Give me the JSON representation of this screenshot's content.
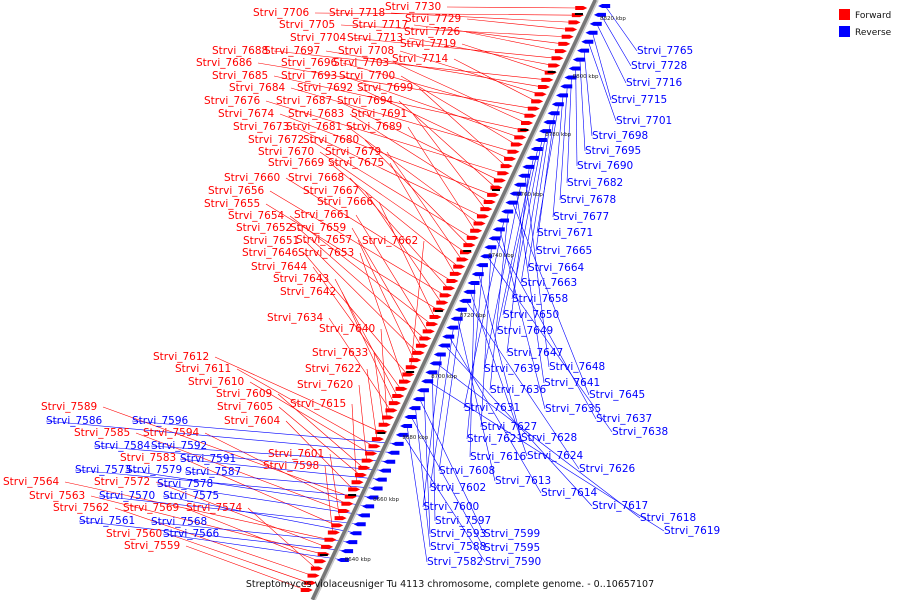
{
  "caption": "Streptomyces violaceusniger Tu 4113 chromosome, complete genome. - 0..10657107",
  "legend": [
    {
      "label": "Forward",
      "color": "#ff0000"
    },
    {
      "label": "Reverse",
      "color": "#0000ff"
    }
  ],
  "colors": {
    "forward": "#ff0000",
    "reverse": "#0000ff",
    "backbone": "#777777"
  },
  "ticks": [
    "8640 kbp",
    "8660 kbp",
    "8680 kbp",
    "8700 kbp",
    "8720 kbp",
    "8740 kbp",
    "8760 kbp",
    "8780 kbp",
    "8800 kbp",
    "8820 kbp"
  ],
  "forward_genes": [
    "Strvi_7730",
    "Strvi_7706",
    "Strvi_7718",
    "Strvi_7729",
    "Strvi_7705",
    "Strvi_7717",
    "Strvi_7726",
    "Strvi_7704",
    "Strvi_7713",
    "Strvi_7719",
    "Strvi_7688",
    "Strvi_7697",
    "Strvi_7708",
    "Strvi_7714",
    "Strvi_7686",
    "Strvi_7696",
    "Strvi_7703",
    "Strvi_7685",
    "Strvi_7693",
    "Strvi_7700",
    "Strvi_7684",
    "Strvi_7692",
    "Strvi_7699",
    "Strvi_7676",
    "Strvi_7687",
    "Strvi_7694",
    "Strvi_7674",
    "Strvi_7683",
    "Strvi_7691",
    "Strvi_7673",
    "Strvi_7681",
    "Strvi_7689",
    "Strvi_7672",
    "Strvi_7680",
    "Strvi_7670",
    "Strvi_7679",
    "Strvi_7669",
    "Strvi_7675",
    "Strvi_7660",
    "Strvi_7668",
    "Strvi_7656",
    "Strvi_7667",
    "Strvi_7655",
    "Strvi_7666",
    "Strvi_7654",
    "Strvi_7661",
    "Strvi_7652",
    "Strvi_7659",
    "Strvi_7651",
    "Strvi_7657",
    "Strvi_7662",
    "Strvi_7646",
    "Strvi_7653",
    "Strvi_7644",
    "Strvi_7643",
    "Strvi_7642",
    "Strvi_7634",
    "Strvi_7640",
    "Strvi_7633",
    "Strvi_7612",
    "Strvi_7622",
    "Strvi_7611",
    "Strvi_7610",
    "Strvi_7620",
    "Strvi_7609",
    "Strvi_7605",
    "Strvi_7615",
    "Strvi_7604",
    "Strvi_7589",
    "Strvi_7594",
    "Strvi_7585",
    "Strvi_7601",
    "Strvi_7583",
    "Strvi_7598",
    "Strvi_7564",
    "Strvi_7572",
    "Strvi_7563",
    "Strvi_7569",
    "Strvi_7574",
    "Strvi_7562",
    "Strvi_7560",
    "Strvi_7559"
  ],
  "reverse_genes": [
    "Strvi_7765",
    "Strvi_7728",
    "Strvi_7716",
    "Strvi_7715",
    "Strvi_7701",
    "Strvi_7698",
    "Strvi_7695",
    "Strvi_7690",
    "Strvi_7682",
    "Strvi_7678",
    "Strvi_7677",
    "Strvi_7671",
    "Strvi_7665",
    "Strvi_7664",
    "Strvi_7663",
    "Strvi_7658",
    "Strvi_7650",
    "Strvi_7649",
    "Strvi_7647",
    "Strvi_7648",
    "Strvi_7639",
    "Strvi_7641",
    "Strvi_7645",
    "Strvi_7636",
    "Strvi_7631",
    "Strvi_7635",
    "Strvi_7637",
    "Strvi_7627",
    "Strvi_7638",
    "Strvi_7621",
    "Strvi_7628",
    "Strvi_7616",
    "Strvi_7624",
    "Strvi_7626",
    "Strvi_7608",
    "Strvi_7613",
    "Strvi_7602",
    "Strvi_7614",
    "Strvi_7617",
    "Strvi_7600",
    "Strvi_7618",
    "Strvi_7597",
    "Strvi_7619",
    "Strvi_7593",
    "Strvi_7599",
    "Strvi_7588",
    "Strvi_7595",
    "Strvi_7582",
    "Strvi_7590",
    "Strvi_7596",
    "Strvi_7586",
    "Strvi_7592",
    "Strvi_7584",
    "Strvi_7591",
    "Strvi_7587",
    "Strvi_7573",
    "Strvi_7579",
    "Strvi_7578",
    "Strvi_7570",
    "Strvi_7575",
    "Strvi_7568",
    "Strvi_7561",
    "Strvi_7566"
  ]
}
